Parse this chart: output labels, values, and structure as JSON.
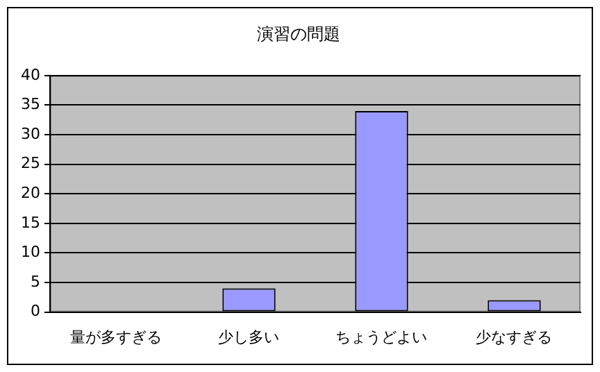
{
  "chart_data": {
    "type": "bar",
    "title": "演習の問題",
    "categories": [
      "量が多すぎる",
      "少し多い",
      "ちょうどよい",
      "少なすぎる"
    ],
    "values": [
      0,
      4,
      34,
      2
    ],
    "color": "#9999ff",
    "ylim": [
      0,
      40
    ],
    "yticks": [
      0,
      5,
      10,
      15,
      20,
      25,
      30,
      35,
      40
    ],
    "grid": "y",
    "legend": false
  }
}
